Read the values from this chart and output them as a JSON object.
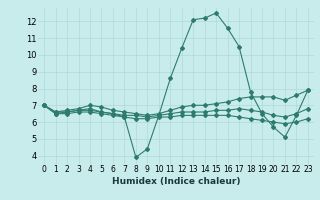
{
  "title": "",
  "xlabel": "Humidex (Indice chaleur)",
  "bg_color": "#c8ecec",
  "grid_color": "#b0d8d8",
  "line_color": "#2e7b6e",
  "xlim": [
    -0.5,
    23.5
  ],
  "ylim": [
    3.5,
    12.8
  ],
  "yticks": [
    4,
    5,
    6,
    7,
    8,
    9,
    10,
    11,
    12
  ],
  "xticks": [
    0,
    1,
    2,
    3,
    4,
    5,
    6,
    7,
    8,
    9,
    10,
    11,
    12,
    13,
    14,
    15,
    16,
    17,
    18,
    19,
    20,
    21,
    22,
    23
  ],
  "line1": [
    7.0,
    6.5,
    6.6,
    6.7,
    6.8,
    6.6,
    6.5,
    6.3,
    3.9,
    4.4,
    6.4,
    8.6,
    10.4,
    12.1,
    12.2,
    12.5,
    11.6,
    10.5,
    7.8,
    6.5,
    5.7,
    5.1,
    6.4,
    7.9
  ],
  "line2": [
    7.0,
    6.6,
    6.7,
    6.8,
    7.0,
    6.9,
    6.7,
    6.6,
    6.5,
    6.4,
    6.5,
    6.7,
    6.9,
    7.0,
    7.0,
    7.1,
    7.2,
    7.4,
    7.5,
    7.5,
    7.5,
    7.3,
    7.6,
    7.9
  ],
  "line3": [
    7.0,
    6.6,
    6.6,
    6.7,
    6.7,
    6.6,
    6.5,
    6.4,
    6.4,
    6.3,
    6.4,
    6.5,
    6.6,
    6.6,
    6.6,
    6.7,
    6.7,
    6.8,
    6.7,
    6.6,
    6.4,
    6.3,
    6.5,
    6.8
  ],
  "line4": [
    7.0,
    6.5,
    6.5,
    6.6,
    6.6,
    6.5,
    6.4,
    6.3,
    6.2,
    6.2,
    6.3,
    6.3,
    6.4,
    6.4,
    6.4,
    6.4,
    6.4,
    6.3,
    6.2,
    6.1,
    6.0,
    5.9,
    6.0,
    6.2
  ],
  "xlabel_fontsize": 6.5,
  "tick_fontsize": 5.5,
  "marker_size": 2.0,
  "line_width": 0.8
}
